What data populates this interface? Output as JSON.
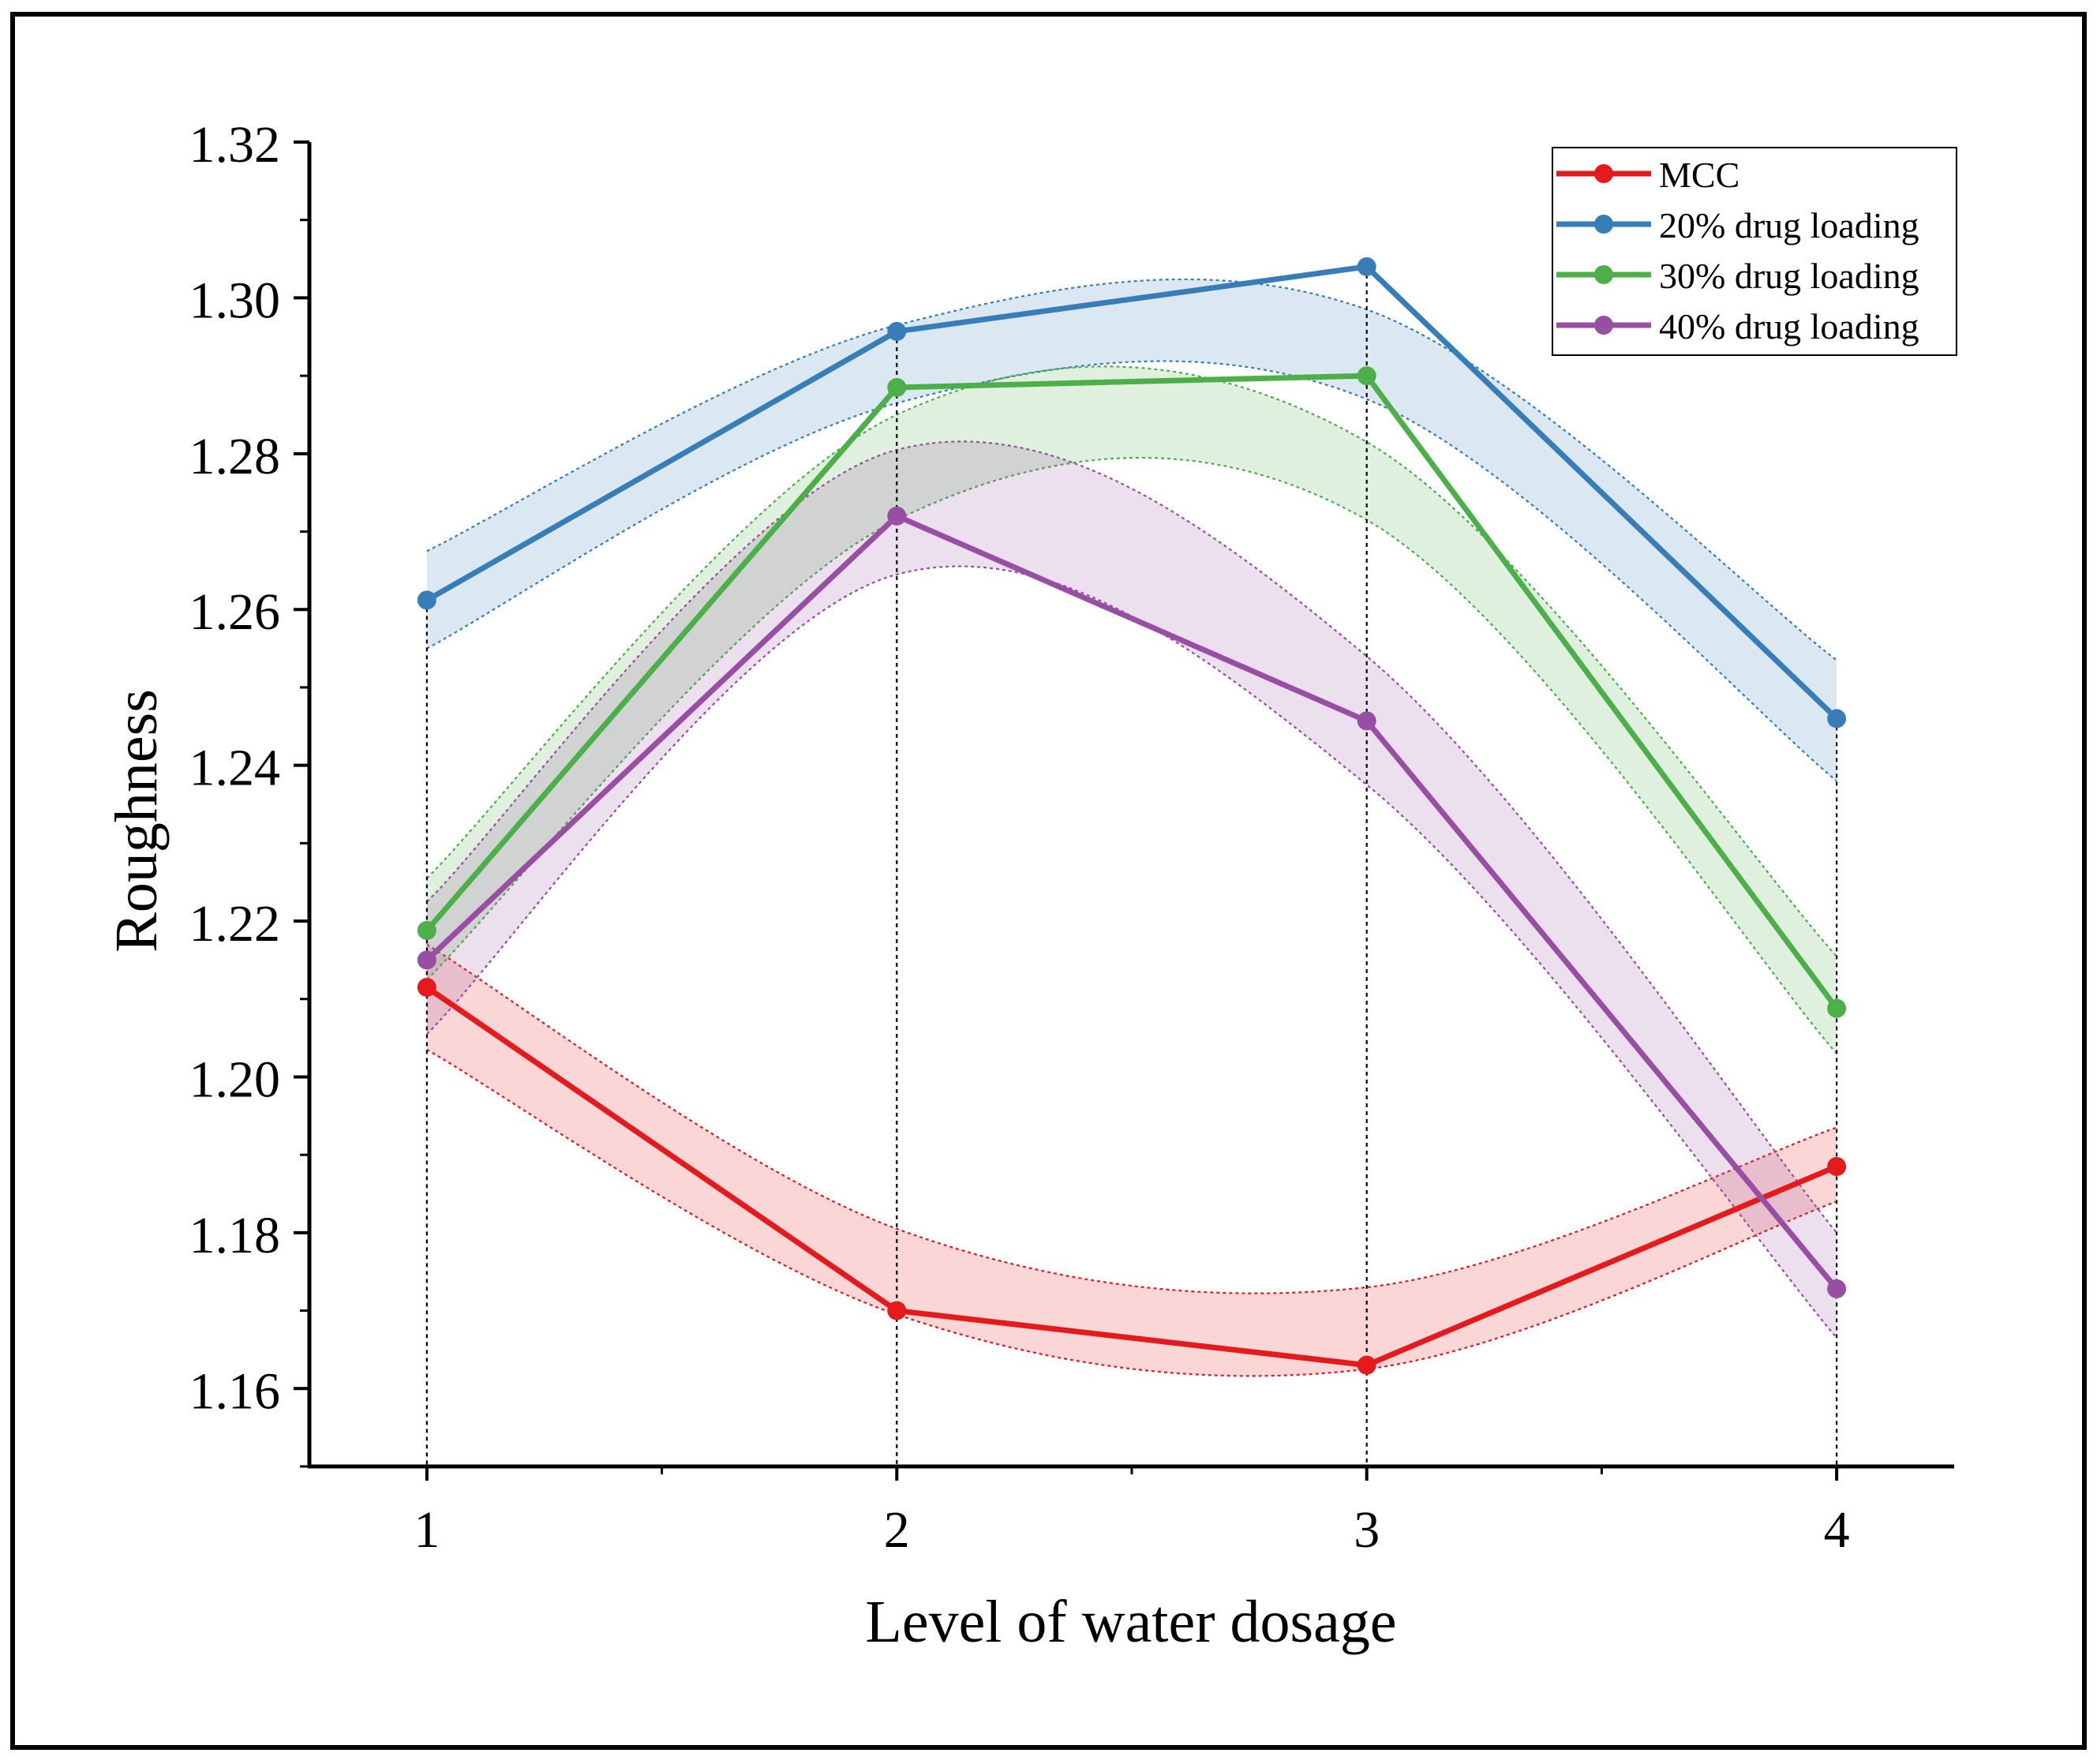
{
  "chart_data": {
    "type": "line",
    "title": "",
    "xlabel": "Level of water dosage",
    "ylabel": "Roughness",
    "x": [
      1,
      2,
      3,
      4
    ],
    "xlim": [
      0.75,
      4.25
    ],
    "ylim": [
      1.15,
      1.32
    ],
    "xticks": [
      "1",
      "2",
      "3",
      "4"
    ],
    "yticks": [
      "1.16",
      "1.18",
      "1.20",
      "1.22",
      "1.24",
      "1.26",
      "1.28",
      "1.30",
      "1.32"
    ],
    "ytick_values": [
      1.16,
      1.18,
      1.2,
      1.22,
      1.24,
      1.26,
      1.28,
      1.3,
      1.32
    ],
    "grid": false,
    "vertical_guides_at": [
      1,
      2,
      3,
      4
    ],
    "legend_position": "top-right",
    "series": [
      {
        "name": "MCC",
        "color": "#e41a1c",
        "values": [
          1.2115,
          1.17,
          1.163,
          1.1885
        ],
        "band_upper": [
          1.217,
          1.1805,
          1.173,
          1.1935
        ],
        "band_lower": [
          1.2035,
          1.1695,
          1.1625,
          1.184
        ]
      },
      {
        "name": "20% drug loading",
        "color": "#377eb8",
        "values": [
          1.2612,
          1.2957,
          1.304,
          1.246
        ],
        "band_upper": [
          1.2675,
          1.2965,
          1.2985,
          1.2535
        ],
        "band_lower": [
          1.255,
          1.2865,
          1.287,
          1.238
        ]
      },
      {
        "name": "30% drug loading",
        "color": "#4daf4a",
        "values": [
          1.2188,
          1.2885,
          1.29,
          1.2088
        ],
        "band_upper": [
          1.2255,
          1.285,
          1.2815,
          1.2155
        ],
        "band_lower": [
          1.2125,
          1.2715,
          1.2715,
          1.203
        ]
      },
      {
        "name": "40% drug loading",
        "color": "#984ea3",
        "values": [
          1.215,
          1.272,
          1.2457,
          1.1728
        ],
        "band_upper": [
          1.2225,
          1.2805,
          1.254,
          1.18
        ],
        "band_lower": [
          1.2055,
          1.2645,
          1.2375,
          1.1665
        ]
      }
    ]
  }
}
